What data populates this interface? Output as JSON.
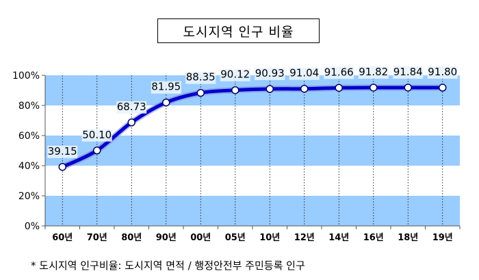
{
  "title": "도시지역 인구 비율",
  "footnote": "* 도시지역 인구비율: 도시지역 면적 / 행정안전부 주민등록 인구",
  "chart_data": {
    "type": "line",
    "title": "도시지역 인구 비율",
    "xlabel": "",
    "ylabel": "",
    "categories": [
      "60년",
      "70년",
      "80년",
      "90년",
      "00년",
      "05년",
      "10년",
      "12년",
      "14년",
      "16년",
      "18년",
      "19년"
    ],
    "series": [
      {
        "values": [
          39.15,
          50.1,
          68.73,
          81.95,
          88.35,
          90.12,
          90.93,
          91.04,
          91.66,
          91.82,
          91.84,
          91.8
        ]
      }
    ],
    "data_labels": [
      "39.15",
      "50.10",
      "68.73",
      "81.95",
      "88.35",
      "90.12",
      "90.93",
      "91.04",
      "91.66",
      "91.82",
      "91.84",
      "91.80"
    ],
    "ylim": [
      0,
      100
    ],
    "yticks": [
      "0%",
      "20%",
      "40%",
      "60%",
      "80%",
      "100%"
    ],
    "grid": "vertical dashed",
    "band_color": "#99ccff",
    "line_color": "#0000cc",
    "legend": "none"
  }
}
